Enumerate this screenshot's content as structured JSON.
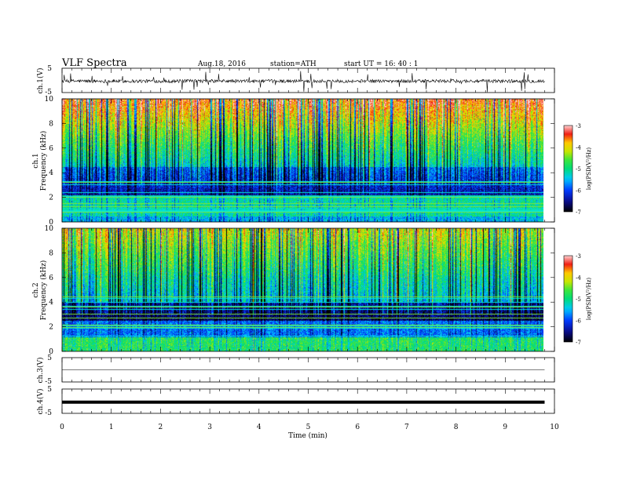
{
  "header": {
    "title": "VLF  Spectra",
    "date": "Aug.18, 2016",
    "station": "station=ATH",
    "start_ut": "start  UT =   16: 40 : 1"
  },
  "chart_data": [
    {
      "type": "line",
      "panel": "ch1-waveform",
      "ylabel": "ch.1(V)",
      "y_tick_labels": [
        "5",
        "-5"
      ],
      "ylim": [
        -5,
        5
      ],
      "baseline": -0.3,
      "noise_amplitude": 0.7
    },
    {
      "type": "heatmap",
      "panel": "ch1-spectrogram",
      "ylabel_line1": "ch.1",
      "ylabel_line2": "Frequency  (kHz)",
      "y_tick_labels": [
        "0",
        "2",
        "4",
        "6",
        "8",
        "10"
      ],
      "ylim": [
        0,
        10
      ],
      "colorbar": {
        "label": "log(PSD(V²/Hz)",
        "tick_labels": [
          "-3",
          "-4",
          "-5",
          "-6",
          "-7"
        ],
        "range": [
          -7,
          -3
        ]
      }
    },
    {
      "type": "heatmap",
      "panel": "ch2-spectrogram",
      "ylabel_line1": "ch.2",
      "ylabel_line2": "Frequency  (kHz)",
      "y_tick_labels": [
        "0",
        "2",
        "4",
        "6",
        "8",
        "10"
      ],
      "ylim": [
        0,
        10
      ],
      "colorbar": {
        "label": "log(PSD(V²/Hz)",
        "tick_labels": [
          "-3",
          "-4",
          "-5",
          "-6",
          "-7"
        ],
        "range": [
          -7,
          -3
        ]
      }
    },
    {
      "type": "line",
      "panel": "ch3-waveform",
      "ylabel": "ch.3(V)",
      "y_tick_labels": [
        "5",
        "-5"
      ],
      "ylim": [
        -5,
        5
      ],
      "baseline": 0.0
    },
    {
      "type": "line",
      "panel": "ch4-waveform",
      "ylabel": "ch.4(V)",
      "y_tick_labels": [
        "5",
        "-5"
      ],
      "ylim": [
        -5,
        5
      ],
      "baseline": -0.4
    }
  ],
  "x_axis": {
    "label": "Time  (min)",
    "tick_labels": [
      "0",
      "1",
      "2",
      "3",
      "4",
      "5",
      "6",
      "7",
      "8",
      "9",
      "10"
    ],
    "xlim": [
      0,
      10
    ],
    "data_end": 9.8
  }
}
